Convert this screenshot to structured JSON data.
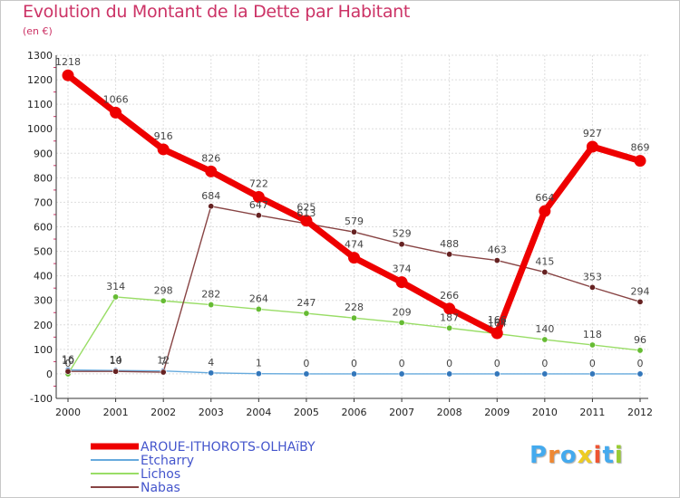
{
  "chart_data": {
    "type": "line",
    "title": "Evolution du Montant de la Dette par Habitant",
    "unit_label": "(en €)",
    "xlabel": "",
    "ylabel": "",
    "ylim": [
      -100,
      1300
    ],
    "yticks": [
      -100,
      0,
      100,
      200,
      300,
      400,
      500,
      600,
      700,
      800,
      900,
      1000,
      1100,
      1200,
      1300
    ],
    "x": [
      "2000",
      "2001",
      "2002",
      "2003",
      "2004",
      "2005",
      "2006",
      "2007",
      "2008",
      "2009",
      "2010",
      "2011",
      "2012"
    ],
    "grid": true,
    "legend_position": "bottom-left",
    "series": [
      {
        "name": "AROUE-ITHOROTS-OLHAïBY",
        "color": "#ee0000",
        "values": [
          1218,
          1066,
          916,
          826,
          722,
          625,
          474,
          374,
          266,
          166,
          664,
          927,
          869
        ]
      },
      {
        "name": "Etcharry",
        "color": "#66aadd",
        "values": [
          16,
          14,
          12,
          4,
          1,
          0,
          0,
          0,
          0,
          0,
          0,
          0,
          0
        ]
      },
      {
        "name": "Lichos",
        "color": "#99dd66",
        "values": [
          0,
          314,
          298,
          282,
          264,
          247,
          228,
          209,
          187,
          164,
          140,
          118,
          96
        ]
      },
      {
        "name": "Nabas",
        "color": "#884444",
        "values": [
          10,
          10,
          7,
          684,
          647,
          613,
          579,
          529,
          488,
          463,
          415,
          353,
          294
        ]
      }
    ]
  },
  "logo": {
    "text": [
      "P",
      "r",
      "o",
      "x",
      "i",
      "t",
      "i"
    ],
    "colors": [
      "#44aaee",
      "#ee8833",
      "#44aaee",
      "#eecc22",
      "#ee5533",
      "#44aaee",
      "#99cc33"
    ]
  }
}
